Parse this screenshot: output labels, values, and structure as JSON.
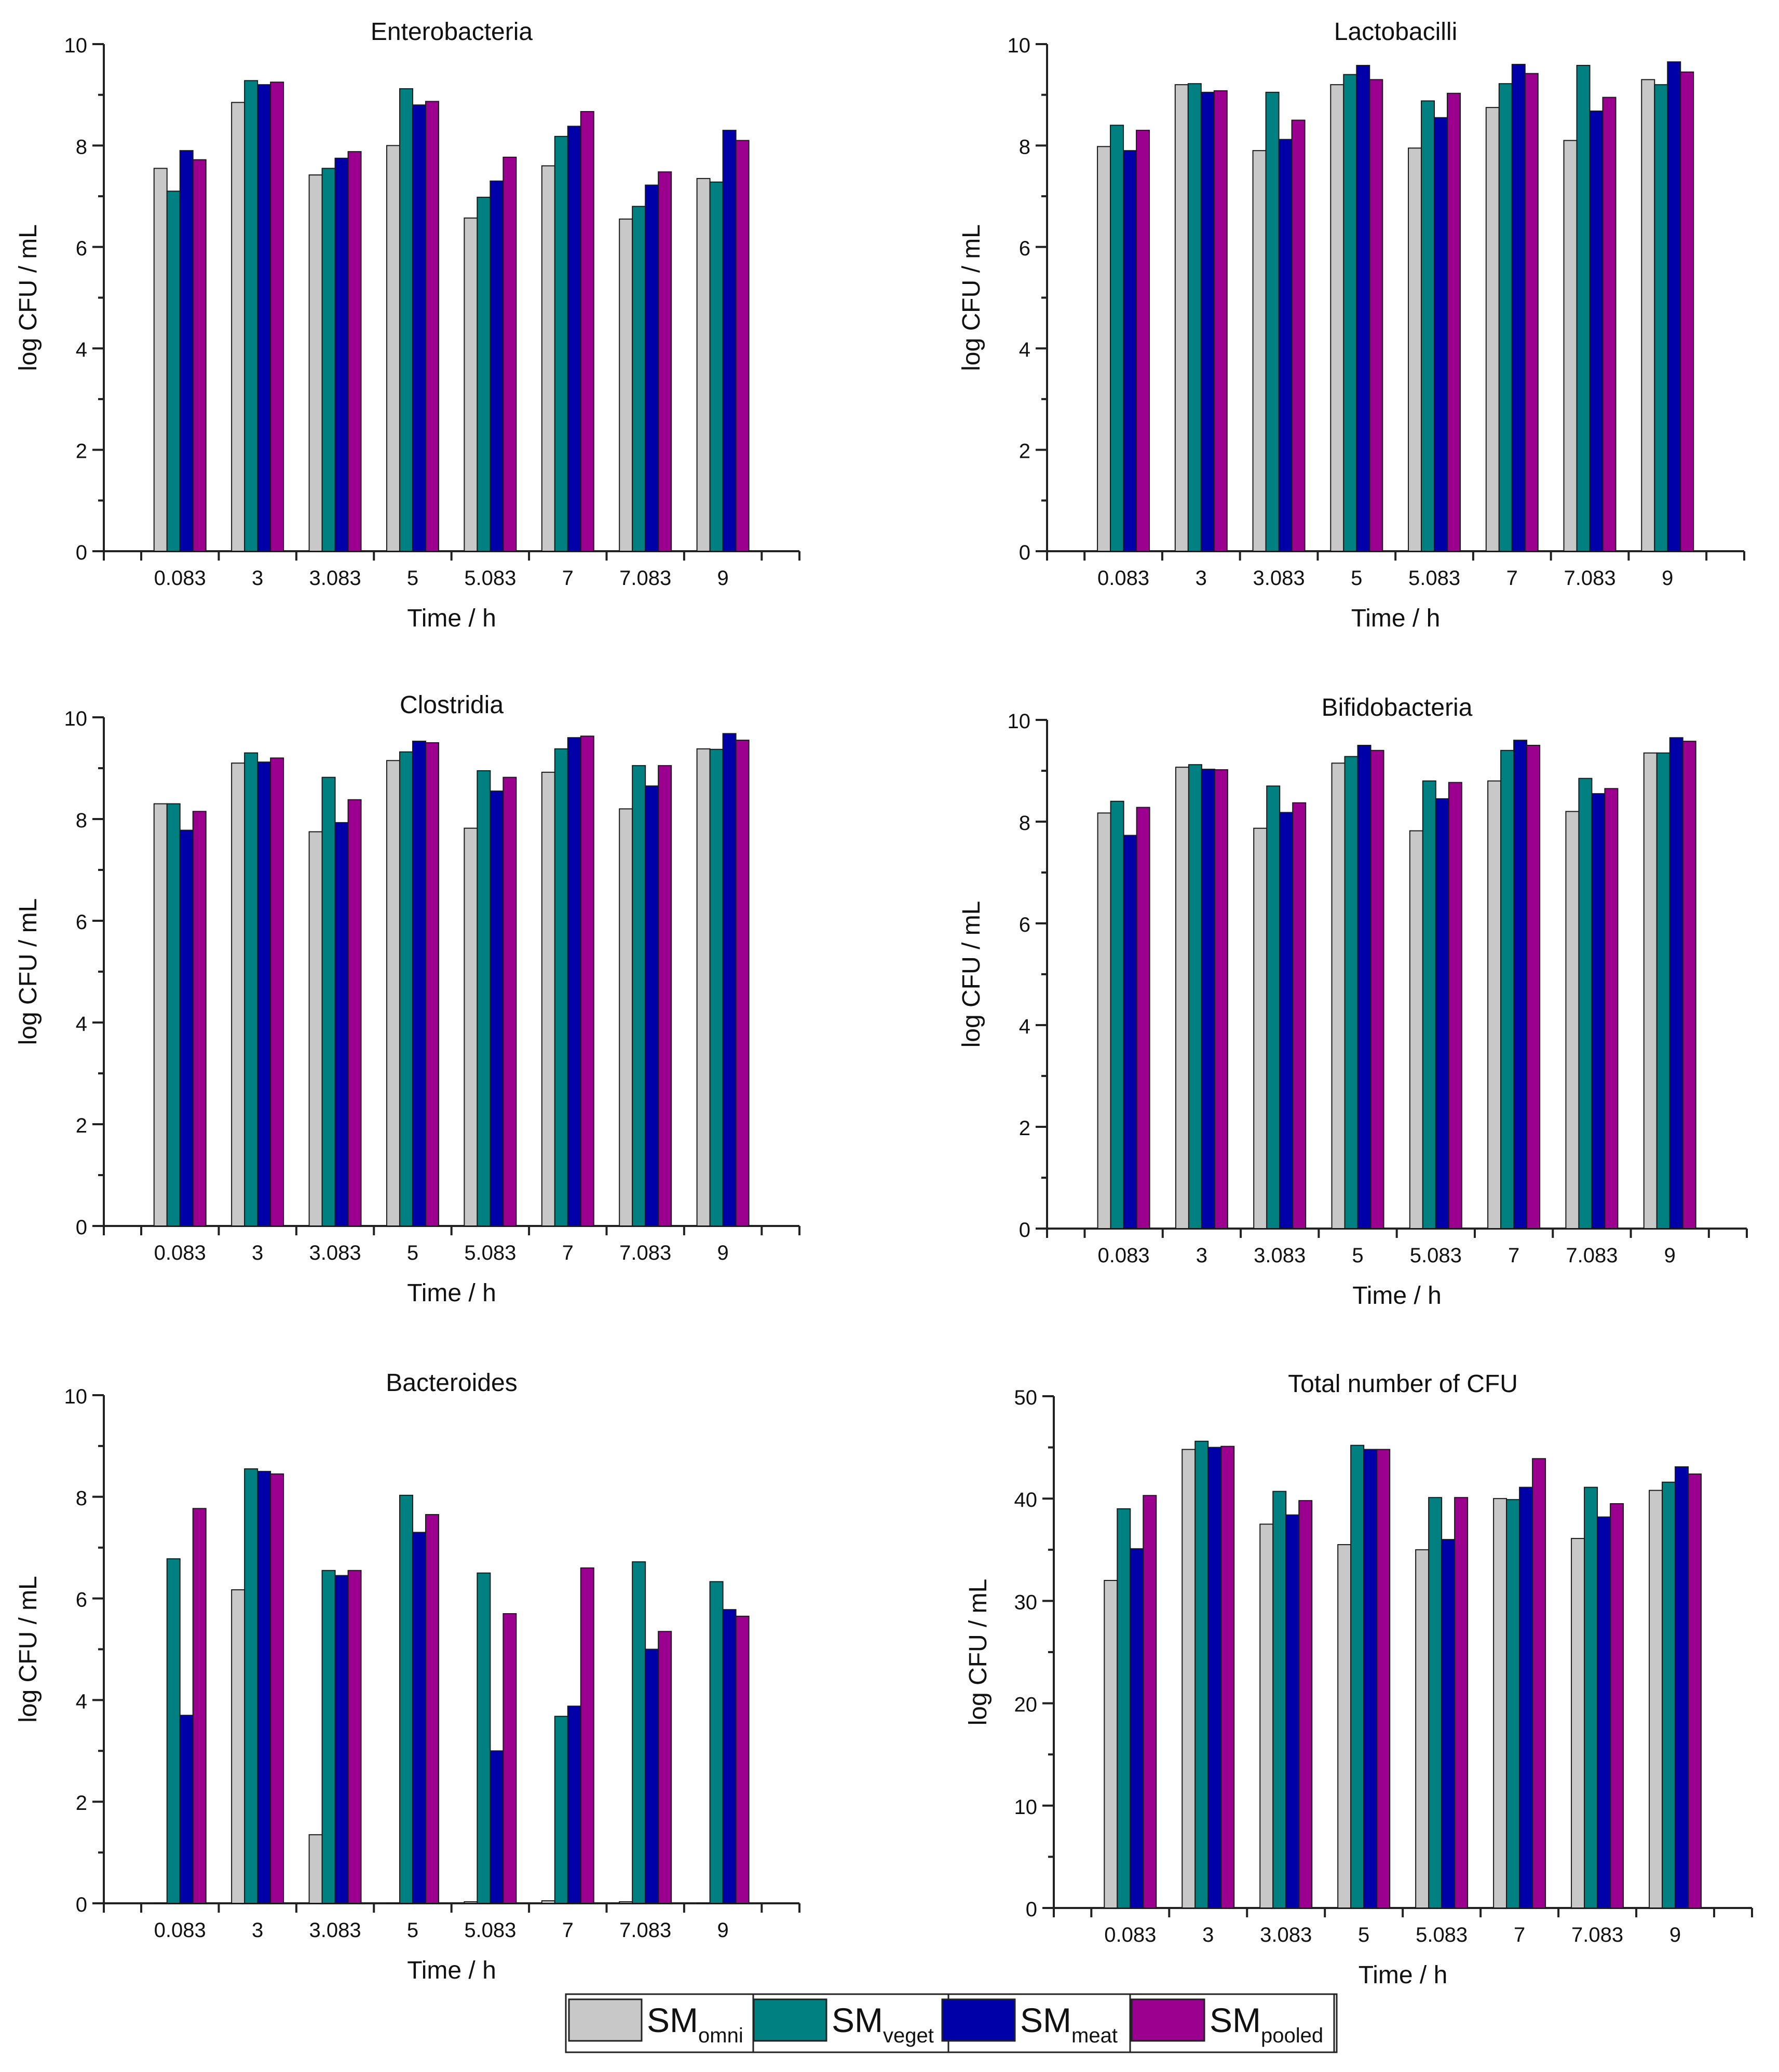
{
  "series": [
    {
      "key": "omni",
      "prefix": "SM",
      "sub": "omni",
      "color": "#c8c8c8"
    },
    {
      "key": "veget",
      "prefix": "SM",
      "sub": "veget",
      "color": "#008080"
    },
    {
      "key": "meat",
      "prefix": "SM",
      "sub": "meat",
      "color": "#0000a8"
    },
    {
      "key": "pooled",
      "prefix": "SM",
      "sub": "pooled",
      "color": "#9b008f"
    }
  ],
  "chart_data": [
    {
      "type": "bar",
      "title": "Enterobacteria",
      "xlabel": "Time / h",
      "ylabel": "log CFU / mL",
      "categories": [
        "0.083",
        "3",
        "3.083",
        "5",
        "5.083",
        "7",
        "7.083",
        "9"
      ],
      "ylim": [
        0,
        10
      ],
      "yticks": [
        0,
        2,
        4,
        6,
        8,
        10
      ],
      "series": [
        {
          "name": "SMomni",
          "values": [
            7.55,
            8.85,
            7.42,
            8.0,
            6.57,
            7.6,
            6.55,
            7.35
          ]
        },
        {
          "name": "SMveget",
          "values": [
            7.1,
            9.28,
            7.55,
            9.12,
            6.98,
            8.18,
            6.8,
            7.28
          ]
        },
        {
          "name": "SMmeat",
          "values": [
            7.9,
            9.2,
            7.75,
            8.8,
            7.3,
            8.38,
            7.22,
            8.3
          ]
        },
        {
          "name": "SMpooled",
          "values": [
            7.72,
            9.25,
            7.88,
            8.87,
            7.77,
            8.67,
            7.48,
            8.1
          ]
        }
      ]
    },
    {
      "type": "bar",
      "title": "Lactobacilli",
      "xlabel": "Time / h",
      "ylabel": "log CFU / mL",
      "categories": [
        "0.083",
        "3",
        "3.083",
        "5",
        "5.083",
        "7",
        "7.083",
        "9"
      ],
      "ylim": [
        0,
        10
      ],
      "yticks": [
        0,
        2,
        4,
        6,
        8,
        10
      ],
      "series": [
        {
          "name": "SMomni",
          "values": [
            7.98,
            9.2,
            7.9,
            9.2,
            7.95,
            8.75,
            8.1,
            9.3
          ]
        },
        {
          "name": "SMveget",
          "values": [
            8.4,
            9.22,
            9.05,
            9.4,
            8.88,
            9.22,
            9.58,
            9.2
          ]
        },
        {
          "name": "SMmeat",
          "values": [
            7.9,
            9.05,
            8.12,
            9.58,
            8.55,
            9.6,
            8.68,
            9.65
          ]
        },
        {
          "name": "SMpooled",
          "values": [
            8.3,
            9.08,
            8.5,
            9.3,
            9.03,
            9.42,
            8.95,
            9.45
          ]
        }
      ]
    },
    {
      "type": "bar",
      "title": "Clostridia",
      "xlabel": "Time / h",
      "ylabel": "log CFU / mL",
      "categories": [
        "0.083",
        "3",
        "3.083",
        "5",
        "5.083",
        "7",
        "7.083",
        "9"
      ],
      "ylim": [
        0,
        10
      ],
      "yticks": [
        0,
        2,
        4,
        6,
        8,
        10
      ],
      "series": [
        {
          "name": "SMomni",
          "values": [
            8.3,
            9.1,
            7.75,
            9.15,
            7.82,
            8.92,
            8.2,
            9.38
          ]
        },
        {
          "name": "SMveget",
          "values": [
            8.3,
            9.3,
            8.82,
            9.32,
            8.95,
            9.38,
            9.05,
            9.37
          ]
        },
        {
          "name": "SMmeat",
          "values": [
            7.78,
            9.12,
            7.93,
            9.53,
            8.55,
            9.6,
            8.65,
            9.68
          ]
        },
        {
          "name": "SMpooled",
          "values": [
            8.15,
            9.2,
            8.38,
            9.5,
            8.82,
            9.63,
            9.05,
            9.55
          ]
        }
      ]
    },
    {
      "type": "bar",
      "title": "Bifidobacteria",
      "xlabel": "Time / h",
      "ylabel": "log CFU / mL",
      "categories": [
        "0.083",
        "3",
        "3.083",
        "5",
        "5.083",
        "7",
        "7.083",
        "9"
      ],
      "ylim": [
        0,
        10
      ],
      "yticks": [
        0,
        2,
        4,
        6,
        8,
        10
      ],
      "series": [
        {
          "name": "SMomni",
          "values": [
            8.17,
            9.07,
            7.87,
            9.15,
            7.82,
            8.8,
            8.2,
            9.35
          ]
        },
        {
          "name": "SMveget",
          "values": [
            8.4,
            9.12,
            8.7,
            9.28,
            8.8,
            9.4,
            8.85,
            9.35
          ]
        },
        {
          "name": "SMmeat",
          "values": [
            7.73,
            9.03,
            8.18,
            9.5,
            8.45,
            9.6,
            8.55,
            9.65
          ]
        },
        {
          "name": "SMpooled",
          "values": [
            8.28,
            9.02,
            8.37,
            9.4,
            8.77,
            9.5,
            8.65,
            9.58
          ]
        }
      ]
    },
    {
      "type": "bar",
      "title": "Bacteroides",
      "xlabel": "Time / h",
      "ylabel": "log CFU / mL",
      "categories": [
        "0.083",
        "3",
        "3.083",
        "5",
        "5.083",
        "7",
        "7.083",
        "9"
      ],
      "ylim": [
        0,
        10
      ],
      "yticks": [
        0,
        2,
        4,
        6,
        8,
        10
      ],
      "series": [
        {
          "name": "SMomni",
          "values": [
            0,
            6.17,
            1.35,
            0,
            0.03,
            0.05,
            0.03,
            0
          ]
        },
        {
          "name": "SMveget",
          "values": [
            6.78,
            8.55,
            6.55,
            8.03,
            6.5,
            3.68,
            6.72,
            6.33
          ]
        },
        {
          "name": "SMmeat",
          "values": [
            3.7,
            8.5,
            6.45,
            7.3,
            3.0,
            3.88,
            5.0,
            5.78
          ]
        },
        {
          "name": "SMpooled",
          "values": [
            7.77,
            8.45,
            6.55,
            7.65,
            5.7,
            6.6,
            5.35,
            5.65
          ]
        }
      ]
    },
    {
      "type": "bar",
      "title": "Total number of CFU",
      "xlabel": "Time / h",
      "ylabel": "log CFU / mL",
      "categories": [
        "0.083",
        "3",
        "3.083",
        "5",
        "5.083",
        "7",
        "7.083",
        "9"
      ],
      "ylim": [
        0,
        50
      ],
      "yticks": [
        0,
        10,
        20,
        30,
        40,
        50
      ],
      "series": [
        {
          "name": "SMomni",
          "values": [
            32.0,
            44.8,
            37.5,
            35.5,
            35.0,
            40.0,
            36.1,
            40.8
          ]
        },
        {
          "name": "SMveget",
          "values": [
            39.0,
            45.6,
            40.7,
            45.2,
            40.1,
            39.9,
            41.1,
            41.6
          ]
        },
        {
          "name": "SMmeat",
          "values": [
            35.1,
            45.0,
            38.4,
            44.8,
            36.0,
            41.1,
            38.2,
            43.1
          ]
        },
        {
          "name": "SMpooled",
          "values": [
            40.3,
            45.1,
            39.8,
            44.8,
            40.1,
            43.9,
            39.5,
            42.4
          ]
        }
      ]
    }
  ]
}
